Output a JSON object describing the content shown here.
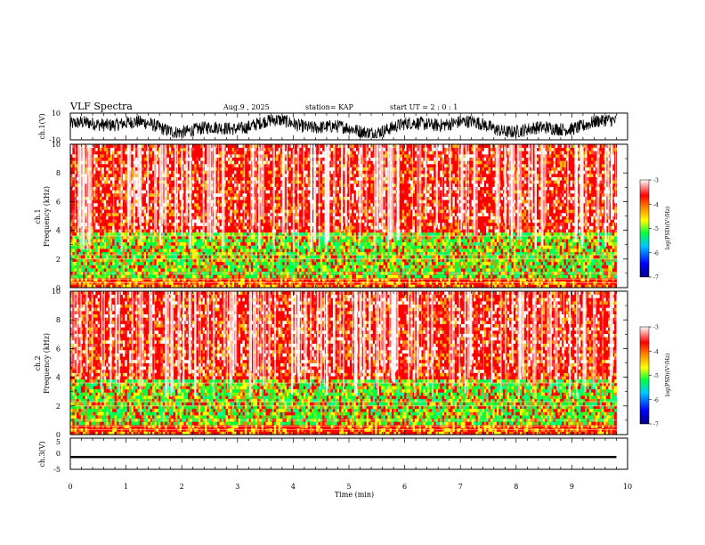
{
  "header": {
    "title": "VLF Spectra",
    "date": "Aug.9 , 2025",
    "station": "station= KAP",
    "start": "start UT = 2 : 0 : 1"
  },
  "colors": {
    "colormap": [
      "#000080",
      "#0000ff",
      "#00c8ff",
      "#00ff40",
      "#ffff00",
      "#ff8000",
      "#ff0000",
      "#ffffff"
    ],
    "trace": "#000000",
    "axis": "#000000"
  },
  "chart_data": [
    {
      "type": "line",
      "panel": "ch1-waveform",
      "ylabel": "ch.1(V)",
      "ylim": [
        -10,
        10
      ],
      "yticks": [
        "10",
        "-10"
      ],
      "xlim": [
        0,
        10
      ],
      "trace": "noisy waveform oscillating roughly between -8 V and +8 V over 0 to 9.8 min"
    },
    {
      "type": "heatmap",
      "panel": "ch1-spectrogram",
      "title": "ch.1",
      "ylabel": "Frequency (kHz)",
      "ylim": [
        0,
        10
      ],
      "yticks": [
        "0",
        "2",
        "4",
        "6",
        "8",
        "10"
      ],
      "xlim": [
        0,
        10
      ],
      "data_end_min": 9.8,
      "colorbar": {
        "label": "log(PSD)(V²/Hz)",
        "range": [
          -7,
          -3
        ],
        "ticks": [
          "-3",
          "-4",
          "-5",
          "-6",
          "-7"
        ]
      }
    },
    {
      "type": "heatmap",
      "panel": "ch2-spectrogram",
      "title": "ch.2",
      "ylabel": "Frequency (kHz)",
      "ylim": [
        0,
        10
      ],
      "yticks": [
        "0",
        "2",
        "4",
        "6",
        "8",
        "10"
      ],
      "xlim": [
        0,
        10
      ],
      "data_end_min": 9.8,
      "colorbar": {
        "label": "log(PSD)(V²/Hz)",
        "range": [
          -7,
          -3
        ],
        "ticks": [
          "-3",
          "-4",
          "-5",
          "-6",
          "-7"
        ]
      }
    },
    {
      "type": "line",
      "panel": "ch3-waveform",
      "ylabel": "ch.3(V)",
      "ylim": [
        -5,
        5
      ],
      "yticks": [
        "5",
        "0",
        "-5"
      ],
      "xlim": [
        0,
        10
      ],
      "trace": "near-constant dense band around -1 V over 0 to 9.8 min"
    }
  ],
  "xaxis": {
    "label": "Time (min)",
    "ticks": [
      "0",
      "1",
      "2",
      "3",
      "4",
      "5",
      "6",
      "7",
      "8",
      "9",
      "10"
    ]
  }
}
